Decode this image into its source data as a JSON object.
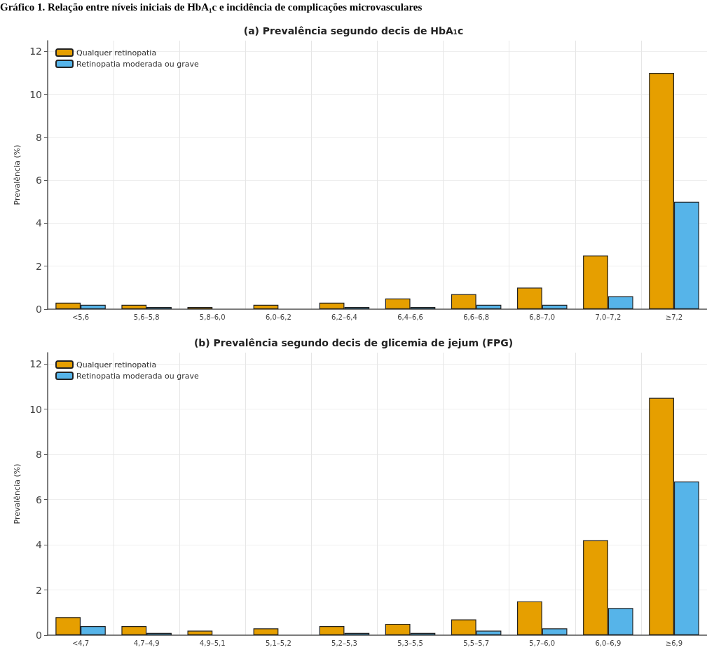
{
  "chart_data": [
    {
      "type": "bar",
      "title": "(a) Prevalência segundo decis de HbA₁c",
      "ylabel": "Prevalência (%)",
      "annotations": [
        "Gráfico 1. Relação entre níveis iniciais de HbA₁c e incidência de complicações microvasculares"
      ],
      "categories": [
        "<5,6",
        "5,6–5,8",
        "5,8–6,0",
        "6,0–6,2",
        "6,2–6,4",
        "6,4–6,6",
        "6,6–6,8",
        "6,8–7,0",
        "7,0–7,2",
        "≥7,2"
      ],
      "series": [
        {
          "name": "Qualquer retinopatia",
          "color": "#e69f00",
          "values": [
            0.3,
            0.2,
            0.1,
            0.2,
            0.3,
            0.5,
            0.7,
            1.0,
            2.5,
            11.0
          ]
        },
        {
          "name": "Retinopatia moderada ou grave",
          "color": "#56b4e9",
          "values": [
            0.2,
            0.1,
            0,
            0,
            0.1,
            0.1,
            0.2,
            0.2,
            0.6,
            5.0
          ]
        }
      ],
      "ylim": [
        0,
        12.5
      ],
      "yticks": [
        0,
        2,
        4,
        6,
        8,
        10,
        12
      ],
      "grid": true,
      "legend": "top left"
    },
    {
      "type": "bar",
      "title": "(b) Prevalência segundo decis de glicemia de jejum (FPG)",
      "ylabel": "Prevalência (%)",
      "categories": [
        "<4,7",
        "4,7–4,9",
        "4,9–5,1",
        "5,1–5,2",
        "5,2–5,3",
        "5,3–5,5",
        "5,5–5,7",
        "5,7–6,0",
        "6,0–6,9",
        "≥6,9"
      ],
      "series": [
        {
          "name": "Qualquer retinopatia",
          "color": "#e69f00",
          "values": [
            0.8,
            0.4,
            0.2,
            0.3,
            0.4,
            0.5,
            0.7,
            1.5,
            4.2,
            10.5
          ]
        },
        {
          "name": "Retinopatia moderada ou grave",
          "color": "#56b4e9",
          "values": [
            0.4,
            0.1,
            0,
            0,
            0.1,
            0.1,
            0.2,
            0.3,
            1.2,
            6.8
          ]
        }
      ],
      "ylim": [
        0,
        12.5
      ],
      "yticks": [
        0,
        2,
        4,
        6,
        8,
        10,
        12
      ],
      "grid": true,
      "legend": "top left"
    }
  ]
}
